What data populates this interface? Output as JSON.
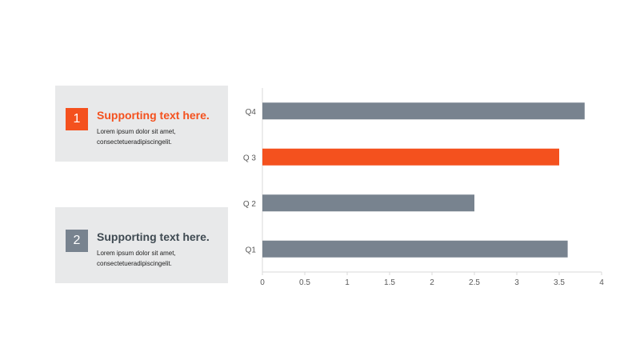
{
  "colors": {
    "accent": "#f4511e",
    "neutral": "#78838f",
    "card_bg": "#e8e9ea",
    "title_dark": "#3f4a52"
  },
  "cards": [
    {
      "number": "1",
      "title": "Supporting text here.",
      "body_line1": "Lorem ipsum  dolor sit amet,",
      "body_line2": "consectetueradipiscingelit."
    },
    {
      "number": "2",
      "title": "Supporting text here.",
      "body_line1": "Lorem ipsum  dolor sit amet,",
      "body_line2": "consectetueradipiscingelit."
    }
  ],
  "chart_data": {
    "type": "bar",
    "orientation": "horizontal",
    "categories": [
      "Q4",
      "Q 3",
      "Q 2",
      "Q1"
    ],
    "values": [
      3.8,
      3.5,
      2.5,
      3.6
    ],
    "highlight": "Q 3",
    "xlim": [
      0,
      4
    ],
    "xticks": [
      "0",
      "0.5",
      "1",
      "1.5",
      "2",
      "2.5",
      "3",
      "3.5",
      "4"
    ],
    "grid": false,
    "legend": "none"
  }
}
